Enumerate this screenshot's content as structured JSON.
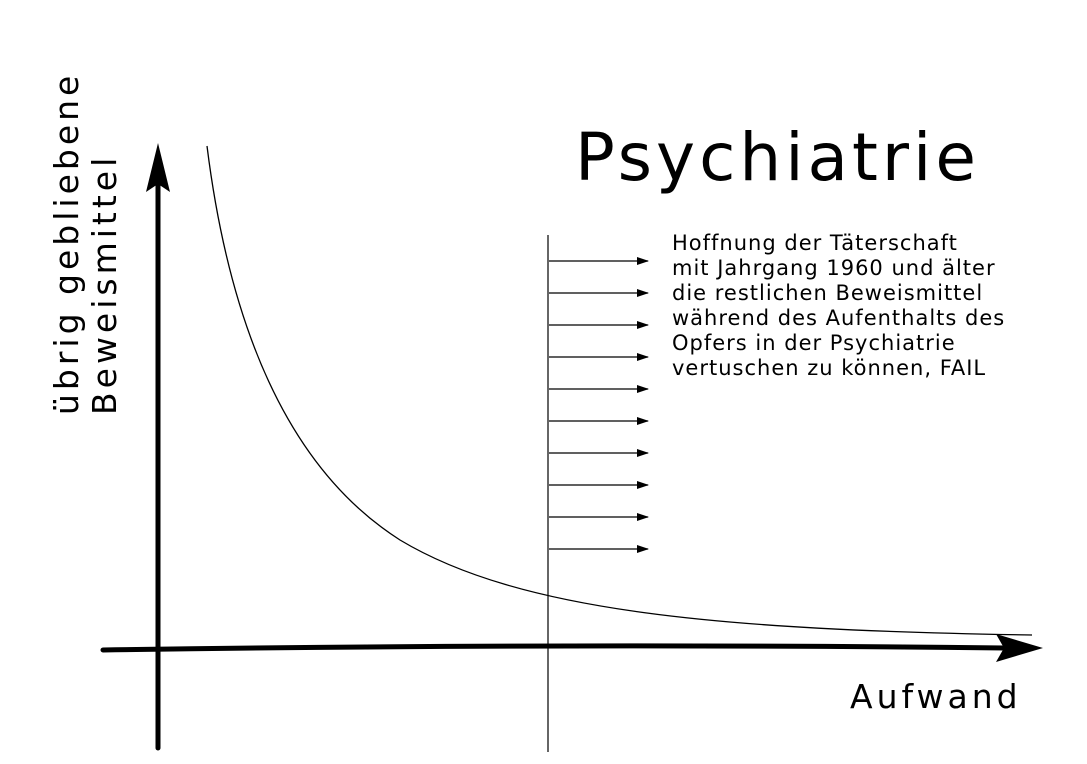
{
  "title": "Psychiatrie",
  "y_axis_label": {
    "line1": "übrig gebliebene",
    "line2": "Beweismittel"
  },
  "x_axis_label": "Aufwand",
  "annotation_lines": [
    "Hoffnung der Täterschaft",
    "mit Jahrgang 1960 und älter",
    "die restlichen Beweismittel",
    "während des Aufenthalts des",
    "Opfers in der Psychiatrie",
    "vertuschen zu können, FAIL"
  ],
  "arrow_count": 10,
  "line_color": "#000000",
  "background_color": "#ffffff"
}
